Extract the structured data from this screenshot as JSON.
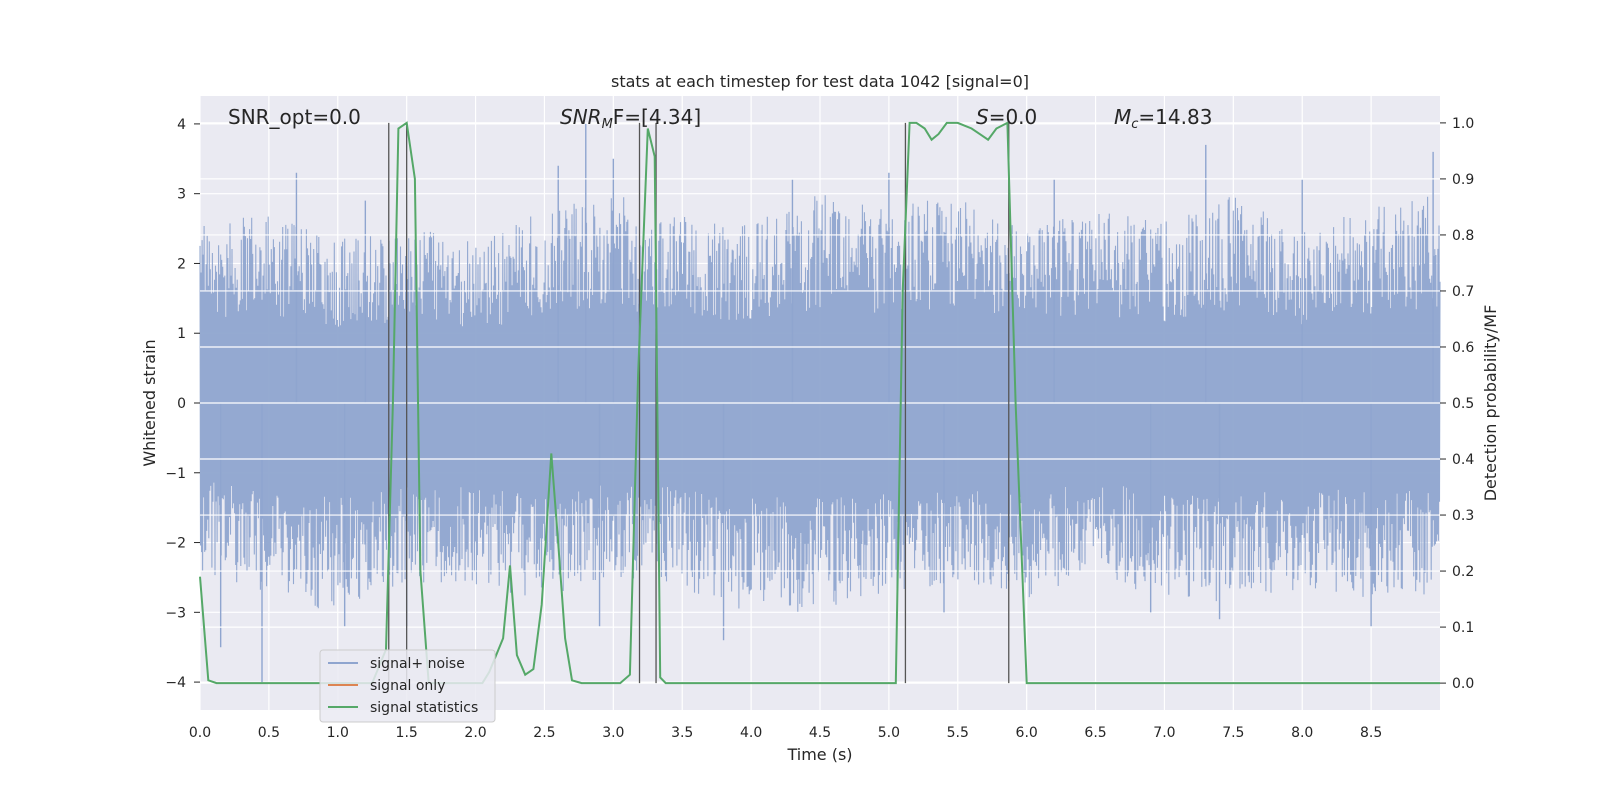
{
  "chart_data": {
    "type": "line",
    "title": "stats at each timestep for test data 1042 [signal=0]",
    "xlabel": "Time (s)",
    "ylabel": "Whitened strain",
    "y2label": "Detection probability/MF",
    "xlim": [
      0,
      9.0
    ],
    "ylim": [
      -4.4,
      4.4
    ],
    "y2lim": [
      -0.048,
      1.048
    ],
    "x_ticks": [
      "0.0",
      "0.5",
      "1.0",
      "1.5",
      "2.0",
      "2.5",
      "3.0",
      "3.5",
      "4.0",
      "4.5",
      "5.0",
      "5.5",
      "6.0",
      "6.5",
      "7.0",
      "7.5",
      "8.0",
      "8.5"
    ],
    "y_ticks": [
      "4",
      "3",
      "2",
      "1",
      "0",
      "−1",
      "−2",
      "−3",
      "−4"
    ],
    "y2_ticks": [
      "1.0",
      "0.9",
      "0.8",
      "0.7",
      "0.6",
      "0.5",
      "0.4",
      "0.3",
      "0.2",
      "0.1",
      "0.0"
    ],
    "grid": true,
    "legend_position": "bottom-left",
    "annotations": {
      "snr_opt": "SNR_opt=0.0",
      "snr_mf_prefix": "SNR",
      "snr_mf_sub": "M",
      "snr_mf_suffix": "F=[4.34]",
      "s_label": "S",
      "s_value": "=0.0",
      "mc_label": "M",
      "mc_sub": "c",
      "mc_value": "=14.83"
    },
    "series": [
      {
        "name": "signal+ noise",
        "color": "#8fa5cf",
        "envelope_x": [
          0.0,
          0.5,
          1.0,
          1.5,
          2.0,
          2.5,
          3.0,
          3.5,
          4.0,
          4.5,
          5.0,
          5.5,
          6.0,
          6.5,
          7.0,
          7.5,
          8.0,
          8.5,
          9.0
        ],
        "envelope_upper": [
          2.6,
          2.8,
          2.4,
          2.6,
          2.3,
          2.8,
          3.0,
          2.7,
          2.6,
          3.0,
          2.8,
          3.0,
          2.5,
          2.8,
          2.6,
          3.0,
          2.5,
          2.8,
          3.0
        ],
        "envelope_lower": [
          -2.4,
          -2.8,
          -3.0,
          -2.6,
          -2.7,
          -2.8,
          -2.5,
          -2.7,
          -3.0,
          -3.0,
          -2.7,
          -2.6,
          -2.8,
          -2.5,
          -2.8,
          -2.9,
          -2.7,
          -2.8,
          -2.8
        ],
        "spikes": [
          [
            0.15,
            -3.5
          ],
          [
            0.45,
            -4.0
          ],
          [
            0.7,
            3.3
          ],
          [
            1.05,
            -3.2
          ],
          [
            1.2,
            2.9
          ],
          [
            1.5,
            -3.2
          ],
          [
            2.6,
            3.4
          ],
          [
            2.8,
            4.0
          ],
          [
            2.9,
            -3.2
          ],
          [
            3.0,
            3.5
          ],
          [
            3.8,
            -3.4
          ],
          [
            4.3,
            3.2
          ],
          [
            5.0,
            3.3
          ],
          [
            5.4,
            -3.0
          ],
          [
            6.2,
            3.2
          ],
          [
            6.9,
            -3.0
          ],
          [
            7.3,
            3.7
          ],
          [
            7.4,
            -3.1
          ],
          [
            8.0,
            3.2
          ],
          [
            8.5,
            -3.2
          ],
          [
            8.95,
            3.6
          ]
        ]
      },
      {
        "name": "signal only",
        "color": "#dd8452",
        "x": [
          0.0,
          9.0
        ],
        "y": [
          0.0,
          0.0
        ]
      },
      {
        "name": "signal statistics",
        "color": "#55a868",
        "x": [
          0.0,
          0.06,
          0.12,
          1.25,
          1.35,
          1.4,
          1.44,
          1.5,
          1.56,
          1.6,
          1.66,
          2.05,
          2.1,
          2.2,
          2.25,
          2.3,
          2.36,
          2.42,
          2.48,
          2.55,
          2.6,
          2.65,
          2.7,
          2.77,
          3.05,
          3.12,
          3.18,
          3.25,
          3.3,
          3.34,
          3.38,
          3.44,
          5.05,
          5.1,
          5.15,
          5.2,
          5.26,
          5.31,
          5.36,
          5.42,
          5.5,
          5.6,
          5.66,
          5.72,
          5.78,
          5.86,
          5.92,
          6.0,
          9.0
        ],
        "y": [
          0.19,
          0.005,
          0.0,
          0.0,
          0.06,
          0.5,
          0.99,
          1.0,
          0.9,
          0.2,
          0.0,
          0.0,
          0.02,
          0.08,
          0.21,
          0.05,
          0.015,
          0.025,
          0.14,
          0.41,
          0.25,
          0.08,
          0.005,
          0.0,
          0.0,
          0.015,
          0.55,
          0.99,
          0.94,
          0.01,
          0.0,
          0.0,
          0.0,
          0.7,
          1.0,
          1.0,
          0.99,
          0.97,
          0.98,
          1.0,
          1.0,
          0.99,
          0.98,
          0.97,
          0.99,
          1.0,
          0.5,
          0.0,
          0.0
        ]
      }
    ],
    "vlines": [
      1.37,
      1.5,
      3.19,
      3.31,
      5.12,
      5.87
    ]
  }
}
